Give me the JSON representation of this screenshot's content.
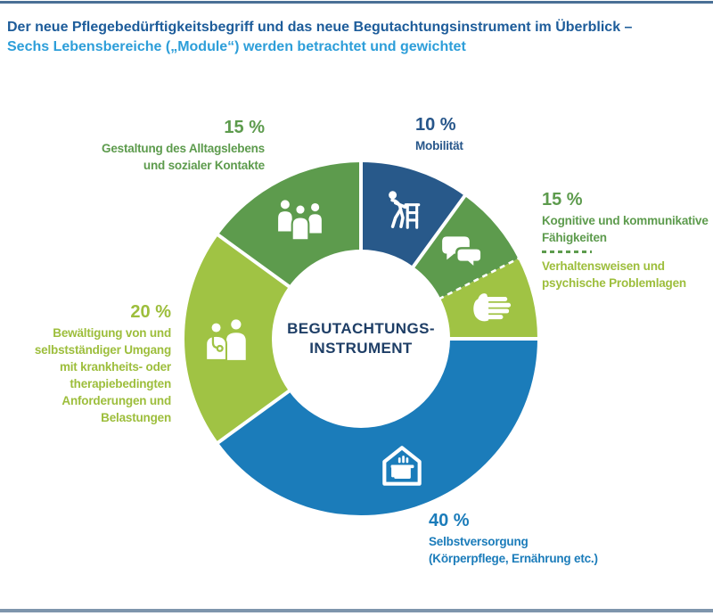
{
  "header": {
    "title_line1": "Der neue Pflegebedürftigkeitsbegriff und das neue Begutachtungsinstrument im Überblick –",
    "title_line2": "Sechs Lebensbereiche („Module“) werden betrachtet und gewichtet"
  },
  "colors": {
    "title_blue": "#1d5c9a",
    "title_light_blue": "#2d9ed9",
    "rule_top": "#4a7096",
    "rule_bottom": "#7e95ac",
    "dark_navy": "#1e3e66",
    "steel_blue": "#27568a",
    "blue": "#1b7cba",
    "green": "#5d9b4d",
    "lime": "#9dbe3c",
    "divider_dash": "#5d9b4d",
    "separator_white": "#ffffff"
  },
  "chart_data": {
    "type": "pie",
    "variant": "donut",
    "title": "Begutachtungsinstrument – Gewichtung der sechs Lebensbereiche (Module)",
    "center_label_line1": "BEGUTACHTUNGS-",
    "center_label_line2": "INSTRUMENT",
    "geometry": {
      "outer_r": 198,
      "inner_r": 100,
      "start_angle_deg": 0,
      "clockwise": true
    },
    "legend_position": "around",
    "segments": [
      {
        "id": "mobilitaet",
        "label": "Mobilität",
        "display_pct": "10 %",
        "value": 10,
        "color": "#28598a",
        "icon": "walker-person-icon",
        "divider_after": "solid"
      },
      {
        "id": "kognitiv",
        "label": "Kognitive und kommunikative Fähigkeiten",
        "display_pct": "15 %",
        "value": 7.5,
        "color": "#5d9b4d",
        "icon": "speech-bubbles-icon",
        "divider_after": "dashed"
      },
      {
        "id": "verhalten",
        "label": "Verhaltensweisen und psychische Problemlagen",
        "display_pct": "15 %",
        "value": 7.5,
        "color": "#a0c344",
        "icon": "hand-icon",
        "divider_after": "solid"
      },
      {
        "id": "selbstversorgung",
        "label": "Selbstversorgung (Körperpflege, Ernährung etc.)",
        "display_pct": "40 %",
        "value": 40,
        "color": "#1b7cba",
        "icon": "house-pot-icon",
        "divider_after": "solid"
      },
      {
        "id": "bewaeltigung",
        "label": "Bewältigung von und selbstständiger Umgang mit krankheits- oder therapiebedingten Anforderungen und Belastungen",
        "display_pct": "20 %",
        "value": 20,
        "color": "#a0c344",
        "icon": "doctor-patient-icon",
        "divider_after": "solid"
      },
      {
        "id": "gestaltung",
        "label": "Gestaltung des Alltagslebens und sozialer Kontakte",
        "display_pct": "15 %",
        "value": 15,
        "color": "#5d9b4d",
        "icon": "people-group-icon",
        "divider_after": "solid"
      }
    ]
  },
  "labels": {
    "gestaltung": {
      "pct": "15 %",
      "lines": [
        "Gestaltung des Alltagslebens",
        "und sozialer Kontakte"
      ]
    },
    "mobilitaet": {
      "pct": "10 %",
      "lines": [
        "Mobilität"
      ]
    },
    "kognitiv": {
      "pct": "15 %",
      "lines": [
        "Kognitive und kommunikative",
        "Fähigkeiten"
      ]
    },
    "verhalten": {
      "lines": [
        "Verhaltensweisen und",
        "psychische Problemlagen"
      ]
    },
    "bewaeltigung": {
      "pct": "20 %",
      "lines": [
        "Bewältigung von und",
        "selbstständiger Umgang",
        "mit krankheits- oder",
        "therapiebedingten",
        "Anforderungen und",
        "Belastungen"
      ]
    },
    "selbstversorgung": {
      "pct": "40 %",
      "lines": [
        "Selbstversorgung",
        "(Körperpflege, Ernährung etc.)"
      ]
    }
  }
}
